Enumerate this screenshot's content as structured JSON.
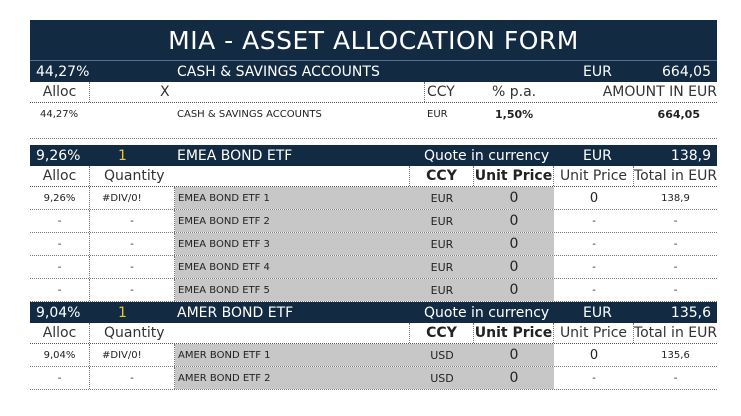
{
  "title": "MIA - ASSET ALLOCATION FORM",
  "cash": {
    "pct": "44,27%",
    "label": "CASH & SAVINGS ACCOUNTS",
    "ccy": "EUR",
    "amount": "664,05",
    "header": {
      "alloc": "Alloc",
      "x": "X",
      "ccy": "CCY",
      "rate": "% p.a.",
      "amount": "AMOUNT IN EUR"
    },
    "row": {
      "alloc": "44,27%",
      "name": "CASH & SAVINGS ACCOUNTS",
      "ccy": "EUR",
      "rate": "1,50%",
      "amount": "664,05"
    }
  },
  "sections": [
    {
      "pct": "9,26%",
      "count": "1",
      "name": "EMEA BOND ETF",
      "quote_label": "Quote in currency",
      "ccy": "EUR",
      "total": "138,9",
      "header": {
        "alloc": "Alloc",
        "quantity": "Quantity",
        "ccy": "CCY",
        "unit_price": "Unit Price",
        "unit_price2": "Unit Price",
        "total_eur": "Total in EUR"
      },
      "rows": [
        {
          "alloc": "9,26%",
          "qty": "#DIV/0!",
          "name": "EMEA BOND ETF 1",
          "ccy": "EUR",
          "price": "0",
          "uprice": "0",
          "total": "138,9"
        },
        {
          "alloc": "-",
          "qty": "-",
          "name": "EMEA BOND ETF 2",
          "ccy": "EUR",
          "price": "0",
          "uprice": "-",
          "total": "-"
        },
        {
          "alloc": "-",
          "qty": "-",
          "name": "EMEA BOND ETF 3",
          "ccy": "EUR",
          "price": "0",
          "uprice": "-",
          "total": "-"
        },
        {
          "alloc": "-",
          "qty": "-",
          "name": "EMEA BOND ETF 4",
          "ccy": "EUR",
          "price": "0",
          "uprice": "-",
          "total": "-"
        },
        {
          "alloc": "-",
          "qty": "-",
          "name": "EMEA BOND ETF 5",
          "ccy": "EUR",
          "price": "0",
          "uprice": "-",
          "total": "-"
        }
      ]
    },
    {
      "pct": "9,04%",
      "count": "1",
      "name": "AMER BOND ETF",
      "quote_label": "Quote in currency",
      "ccy": "EUR",
      "total": "135,6",
      "header": {
        "alloc": "Alloc",
        "quantity": "Quantity",
        "ccy": "CCY",
        "unit_price": "Unit Price",
        "unit_price2": "Unit Price",
        "total_eur": "Total in EUR"
      },
      "rows": [
        {
          "alloc": "9,04%",
          "qty": "#DIV/0!",
          "name": "AMER BOND ETF 1",
          "ccy": "USD",
          "price": "0",
          "uprice": "0",
          "total": "135,6"
        },
        {
          "alloc": "-",
          "qty": "-",
          "name": "AMER BOND ETF 2",
          "ccy": "USD",
          "price": "0",
          "uprice": "-",
          "total": "-"
        }
      ]
    }
  ]
}
